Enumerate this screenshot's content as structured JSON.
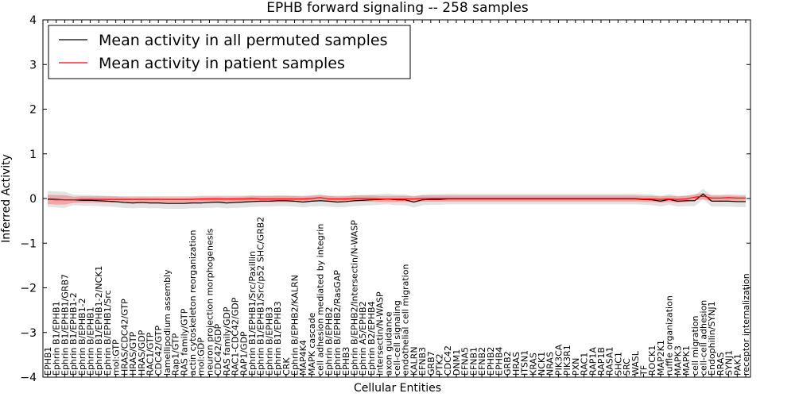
{
  "chart_data": {
    "type": "line",
    "title": "EPHB forward signaling -- 258 samples",
    "xlabel": "Cellular Entities",
    "ylabel": "Inferred Activity",
    "ylim": [
      -4,
      4
    ],
    "yticks": [
      "−4",
      "−3",
      "−2",
      "−1",
      "0",
      "1",
      "2",
      "3",
      "4"
    ],
    "grid": false,
    "legend_position": "top-left",
    "categories": [
      "EPHB1",
      "Ephrin B1/EPHB1",
      "Ephrin B1/EPHB1/GRB7",
      "Ephrin B1/EPHB1-2",
      "Ephrin B/EPHB1-2",
      "Ephrin B/EPHB1",
      "Ephrin B1/EPHB1-2/NCK1",
      "Ephrin B/EPHB1/Src",
      "mol:GTP",
      "HRAS/CDC42/GTP",
      "HRAS/GTP",
      "HRAS/GDP",
      "RAC1/GTP",
      "CDC42/GTP",
      "lamellipodium assembly",
      "Rap1/GTP",
      "RAS family/GTP",
      "actin cytoskeleton reorganization",
      "mol:GDP",
      "neuron projection morphogenesis",
      "CDC42/GDP",
      "RAS family/GDP",
      "RAC1-CDC42/GDP",
      "RAP1/GDP",
      "Ephrin B1/EPHB1/Src/Paxillin",
      "Ephrin B1/EPHB1/Src/p52 SHC/GRB2",
      "Ephrin B/EPHB3",
      "Ephrin B1/EPHB3",
      "CRK",
      "Ephrin B/EPHB2/KALRN",
      "MAP4K4",
      "MAPK cascade",
      "cell adhesion mediated by integrin",
      "Ephrin B/EPHB2",
      "Ephrin B/EPHB2/RasGAP",
      "EPHB3",
      "Ephrin B/EPHB2/Intersectin/N-WASP",
      "Ephrin A5/EPHB2",
      "Ephrin B2/EPHB4",
      "Intersectin/N-WASP",
      "axon guidance",
      "cell-cell signaling",
      "endothelial cell migration",
      "KALRN",
      "EFNB3",
      "GRB7",
      "PTK2",
      "CDC42",
      "DNM1",
      "EFNA5",
      "EFNB1",
      "EFNB2",
      "EPHB2",
      "EPHB4",
      "GRB2",
      "HRAS",
      "ITSN1",
      "KRAS",
      "NCK1",
      "NRAS",
      "PIK3CA",
      "PIK3R1",
      "PXN",
      "RAC1",
      "RAP1A",
      "RAP1B",
      "RASA1",
      "SHC1",
      "SRC",
      "WASL",
      "TF",
      "ROCK1",
      "MAP2K1",
      "ruffle organization",
      "MAPK3",
      "MAPK1",
      "cell migration",
      "cell-cell adhesion",
      "Endophilin/SYNJ1",
      "RRAS",
      "SYNJ1",
      "PAK1",
      "receptor internalization"
    ],
    "series": [
      {
        "name": "Mean activity in all permuted samples",
        "color": "#000000",
        "values": [
          -0.01,
          -0.02,
          -0.03,
          -0.03,
          -0.04,
          -0.04,
          -0.05,
          -0.06,
          -0.07,
          -0.09,
          -0.1,
          -0.09,
          -0.1,
          -0.1,
          -0.11,
          -0.11,
          -0.11,
          -0.1,
          -0.1,
          -0.09,
          -0.08,
          -0.1,
          -0.09,
          -0.08,
          -0.07,
          -0.06,
          -0.06,
          -0.05,
          -0.05,
          -0.06,
          -0.08,
          -0.06,
          -0.05,
          -0.06,
          -0.08,
          -0.07,
          -0.05,
          -0.04,
          -0.03,
          -0.02,
          -0.01,
          -0.03,
          -0.03,
          -0.08,
          -0.03,
          -0.02,
          -0.02,
          -0.01,
          -0.01,
          -0.01,
          -0.01,
          -0.01,
          -0.01,
          -0.01,
          -0.01,
          -0.01,
          -0.01,
          -0.01,
          -0.01,
          -0.01,
          -0.01,
          -0.01,
          -0.01,
          -0.01,
          -0.01,
          -0.01,
          -0.01,
          -0.01,
          -0.01,
          -0.01,
          -0.02,
          -0.03,
          -0.06,
          -0.02,
          -0.06,
          -0.05,
          -0.05,
          0.1,
          -0.06,
          -0.06,
          -0.06,
          -0.07,
          -0.07
        ],
        "band": 0.12
      },
      {
        "name": "Mean activity in patient samples",
        "color": "#ff0000",
        "values": [
          -0.02,
          -0.03,
          -0.03,
          -0.03,
          -0.02,
          -0.02,
          -0.02,
          -0.02,
          -0.02,
          -0.02,
          -0.02,
          -0.02,
          -0.02,
          -0.02,
          -0.02,
          -0.02,
          -0.02,
          -0.02,
          -0.01,
          -0.01,
          -0.01,
          -0.01,
          -0.01,
          -0.01,
          0,
          -0.01,
          -0.01,
          -0.01,
          -0.01,
          -0.01,
          -0.01,
          0,
          0.02,
          -0.01,
          -0.01,
          -0.01,
          0,
          0,
          0,
          -0.01,
          -0.01,
          -0.01,
          -0.01,
          -0.01,
          0,
          0,
          0,
          0,
          0,
          0,
          0,
          0,
          0,
          0,
          0,
          0,
          0,
          0,
          0,
          0,
          0,
          0,
          0,
          0,
          0,
          0,
          0,
          0,
          0,
          0,
          -0.01,
          -0.01,
          -0.02,
          -0.01,
          -0.02,
          -0.01,
          0.03,
          0.05,
          0.01,
          0.01,
          0.02,
          0.01,
          0.01
        ],
        "band": 0.07
      }
    ]
  }
}
